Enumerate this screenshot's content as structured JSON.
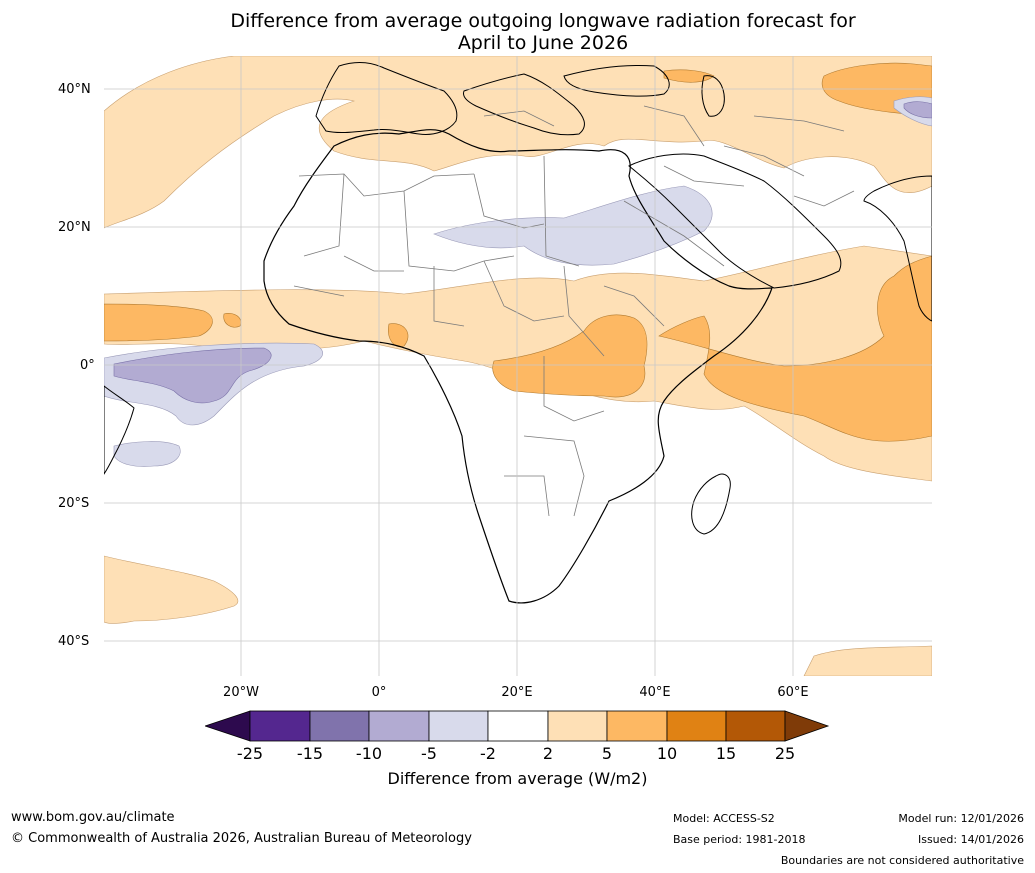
{
  "title": {
    "line1": "Difference from average outgoing longwave radiation forecast for",
    "line2": "April to June 2026"
  },
  "map": {
    "region": "Africa",
    "lat_labels": [
      "40°N",
      "20°N",
      "0°",
      "20°S",
      "40°S"
    ],
    "lon_labels": [
      "20°W",
      "0°",
      "20°E",
      "40°E",
      "60°E"
    ],
    "colors": {
      "ocean_bg": "#ffffff",
      "coast": "#000000",
      "borders": "#7a7a7a",
      "grid": "#c8c8c8"
    }
  },
  "colorbar": {
    "label": "Difference from average (W/m2)",
    "ticks": [
      "-25",
      "-15",
      "-10",
      "-5",
      "-2",
      "2",
      "5",
      "10",
      "15",
      "25"
    ],
    "colors": {
      "under": "#2d0a4e",
      "b1": "#54278f",
      "b2": "#8073ac",
      "b3": "#b2abd2",
      "b4": "#d8daeb",
      "b5": "#ffffff",
      "b6": "#fee0b6",
      "b7": "#fdb863",
      "b8": "#e08214",
      "b9": "#b35806",
      "over": "#7f3b08"
    }
  },
  "footer": {
    "website": "www.bom.gov.au/climate",
    "copyright": "© Commonwealth of Australia 2026, Australian Bureau of Meteorology",
    "model": "Model: ACCESS-S2",
    "base_period": "Base period: 1981-2018",
    "model_run": "Model run: 12/01/2026",
    "issued": "Issued: 14/01/2026",
    "disclaimer": "Boundaries are not considered authoritative"
  }
}
